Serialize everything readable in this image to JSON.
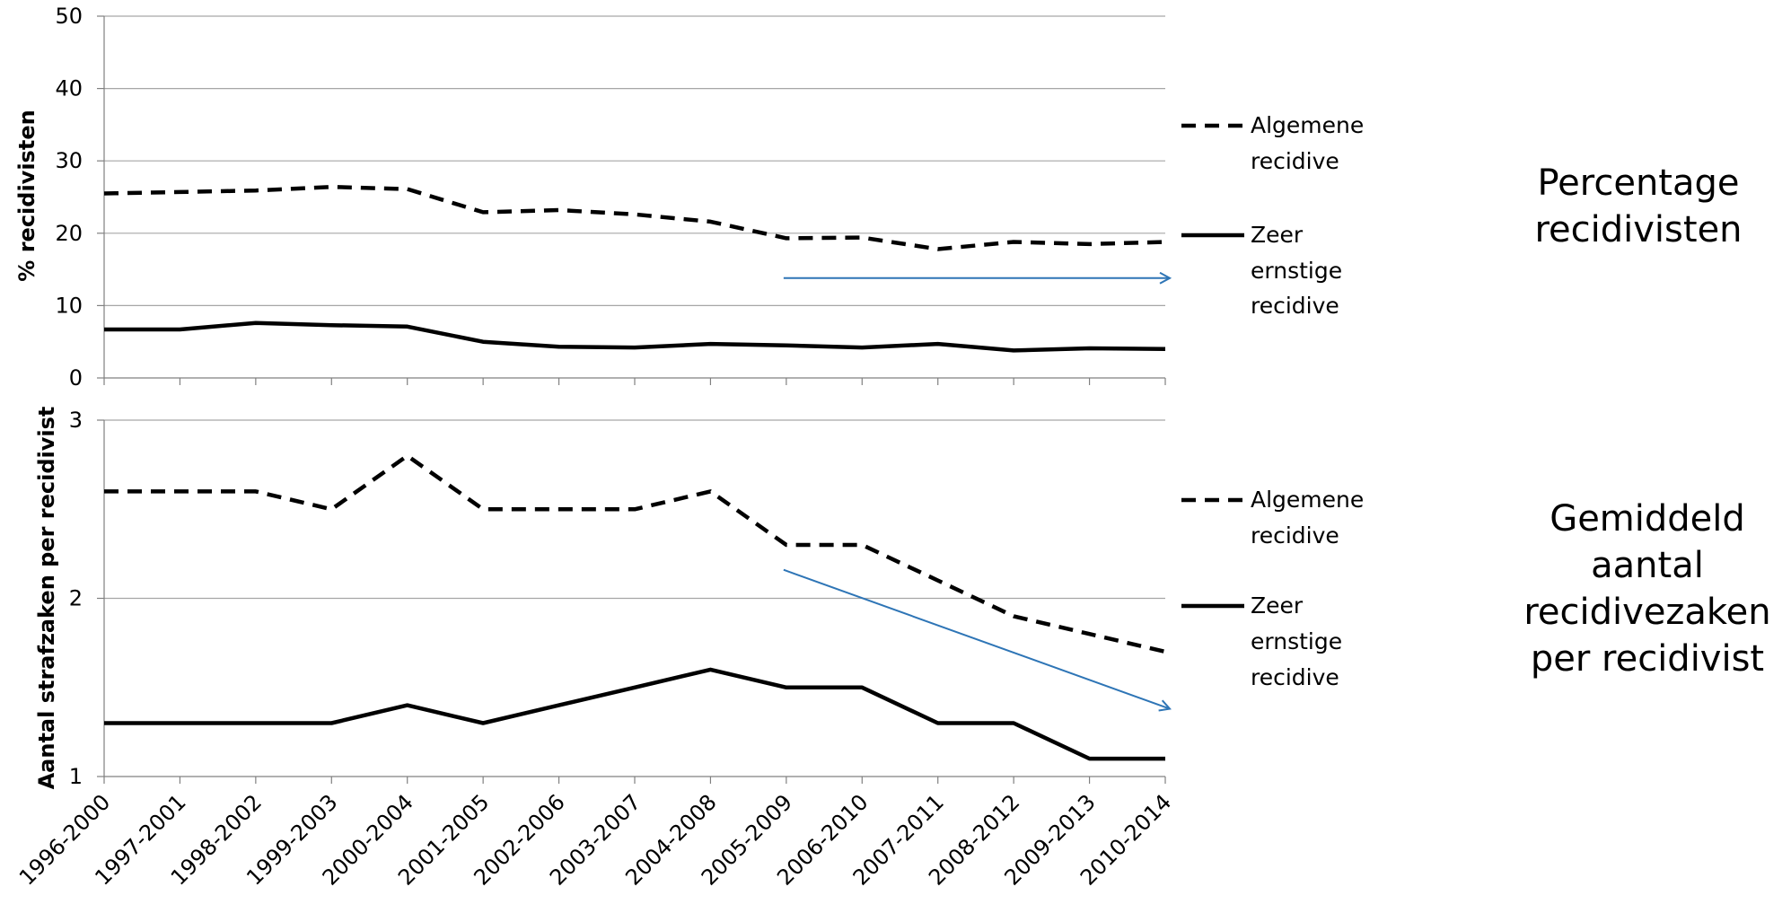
{
  "chart_data": [
    {
      "type": "line",
      "ylabel": "% recidivisten",
      "ylim": [
        0,
        50
      ],
      "yticks": [
        0,
        10,
        20,
        30,
        40,
        50
      ],
      "grid": true,
      "categories": [
        "1996-2000",
        "1997-2001",
        "1998-2002",
        "1999-2003",
        "2000-2004",
        "2001-2005",
        "2002-2006",
        "2003-2007",
        "2004-2008",
        "2005-2009",
        "2006-2010",
        "2007-2011",
        "2008-2012",
        "2009-2013",
        "2010-2014"
      ],
      "series": [
        {
          "name": "Algemene recidive",
          "style": "dashed",
          "values": [
            25.5,
            25.7,
            25.9,
            26.4,
            26.1,
            22.9,
            23.2,
            22.6,
            21.6,
            19.3,
            19.4,
            17.8,
            18.8,
            18.5,
            18.8
          ]
        },
        {
          "name": "Zeer ernstige recidive",
          "style": "solid",
          "values": [
            6.7,
            6.7,
            7.6,
            7.3,
            7.1,
            5.0,
            4.3,
            4.2,
            4.7,
            4.5,
            4.2,
            4.7,
            3.8,
            4.1,
            4.0
          ]
        }
      ],
      "legend_lines": [
        [
          "Algemene",
          "recidive"
        ],
        [
          "Zeer",
          "ernstige",
          "recidive"
        ]
      ],
      "annotation": {
        "type": "arrow",
        "color": "#2E75B6",
        "from": [
          "2005-2009",
          13.8
        ],
        "to": [
          "2010-2014",
          13.8
        ]
      },
      "side_label": "Percentage recidivisten"
    },
    {
      "type": "line",
      "ylabel": "Aantal strafzaken per recidivist",
      "ylim": [
        1,
        3
      ],
      "yticks": [
        1,
        2,
        3
      ],
      "grid": true,
      "categories": [
        "1996-2000",
        "1997-2001",
        "1998-2002",
        "1999-2003",
        "2000-2004",
        "2001-2005",
        "2002-2006",
        "2003-2007",
        "2004-2008",
        "2005-2009",
        "2006-2010",
        "2007-2011",
        "2008-2012",
        "2009-2013",
        "2010-2014"
      ],
      "series": [
        {
          "name": "Algemene recidive",
          "style": "dashed",
          "values": [
            2.6,
            2.6,
            2.6,
            2.5,
            2.8,
            2.5,
            2.5,
            2.5,
            2.6,
            2.3,
            2.3,
            2.1,
            1.9,
            1.8,
            1.7
          ]
        },
        {
          "name": "Zeer ernstige recidive",
          "style": "solid",
          "values": [
            1.3,
            1.3,
            1.3,
            1.3,
            1.4,
            1.3,
            1.4,
            1.5,
            1.6,
            1.5,
            1.5,
            1.3,
            1.3,
            1.1,
            1.1
          ]
        }
      ],
      "legend_lines": [
        [
          "Algemene",
          "recidive"
        ],
        [
          "Zeer",
          "ernstige",
          "recidive"
        ]
      ],
      "annotation": {
        "type": "arrow",
        "color": "#2E75B6",
        "from": [
          "2005-2009",
          2.16
        ],
        "to": [
          "2010-2014",
          1.38
        ]
      },
      "side_label": "Gemiddeld aantal recidivezaken per recidivist"
    }
  ]
}
